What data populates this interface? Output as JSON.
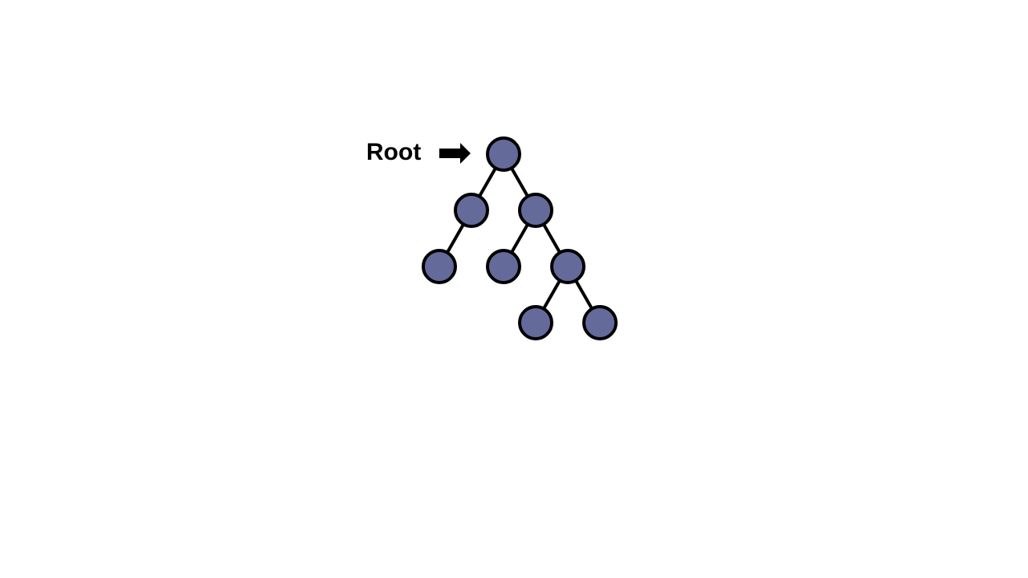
{
  "diagram": {
    "type": "binary-tree",
    "root_label": "Root",
    "node_fill_color": "#646b9b",
    "stroke_color": "#000000",
    "nodes": [
      {
        "id": "n0",
        "depth": 0,
        "order": 0
      },
      {
        "id": "n1",
        "depth": 1,
        "order": 0
      },
      {
        "id": "n2",
        "depth": 1,
        "order": 1
      },
      {
        "id": "n3",
        "depth": 2,
        "order": 0
      },
      {
        "id": "n4",
        "depth": 2,
        "order": 1
      },
      {
        "id": "n5",
        "depth": 2,
        "order": 2
      },
      {
        "id": "n6",
        "depth": 3,
        "order": 0
      },
      {
        "id": "n7",
        "depth": 3,
        "order": 1
      }
    ],
    "edges": [
      {
        "from": "n0",
        "to": "n1"
      },
      {
        "from": "n0",
        "to": "n2"
      },
      {
        "from": "n1",
        "to": "n3"
      },
      {
        "from": "n2",
        "to": "n4"
      },
      {
        "from": "n2",
        "to": "n5"
      },
      {
        "from": "n5",
        "to": "n6"
      },
      {
        "from": "n5",
        "to": "n7"
      }
    ],
    "root_pointer_icon": "right-arrow-icon"
  }
}
